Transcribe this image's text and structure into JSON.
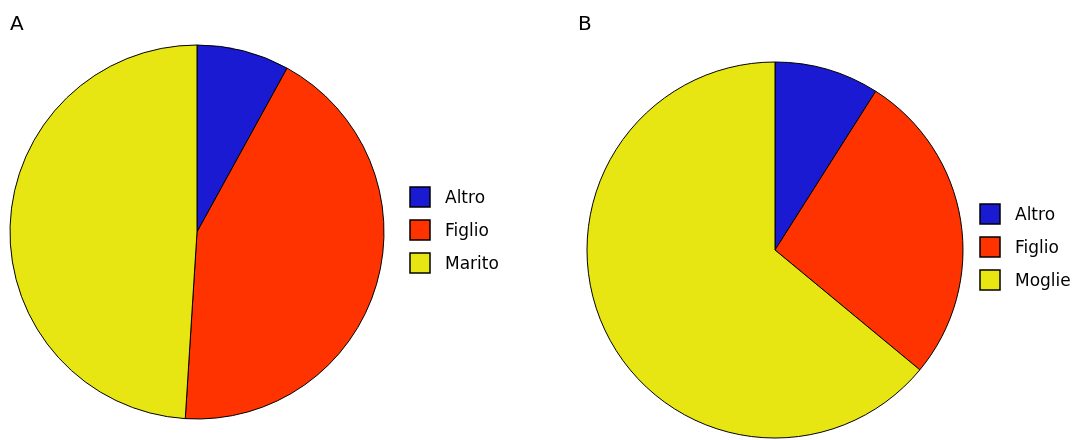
{
  "chart_data": [
    {
      "type": "pie",
      "title": "A",
      "categories": [
        "Altro",
        "Figlio",
        "Marito"
      ],
      "values": [
        8,
        43,
        49
      ],
      "colors": [
        "#1a1ad2",
        "#ff3300",
        "#e8e612"
      ],
      "legend": "right"
    },
    {
      "type": "pie",
      "title": "B",
      "categories": [
        "Altro",
        "Figlio",
        "Moglie"
      ],
      "values": [
        9,
        27,
        64
      ],
      "colors": [
        "#1a1ad2",
        "#ff3300",
        "#e8e612"
      ],
      "legend": "right"
    }
  ]
}
